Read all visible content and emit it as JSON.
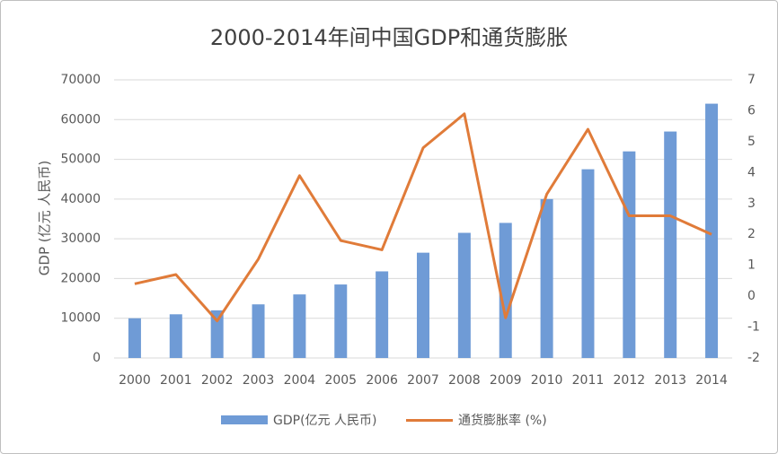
{
  "chart_data": {
    "type": "bar",
    "title": "2000-2014年间中国GDP和通货膨胀",
    "ylabel": "GDP (亿元 人民币)",
    "categories": [
      "2000",
      "2001",
      "2002",
      "2003",
      "2004",
      "2005",
      "2006",
      "2007",
      "2008",
      "2009",
      "2010",
      "2011",
      "2012",
      "2013",
      "2014"
    ],
    "ylim": [
      0,
      70000
    ],
    "y2lim": [
      -2,
      7
    ],
    "yticks": [
      "0",
      "10000",
      "20000",
      "30000",
      "40000",
      "50000",
      "60000",
      "70000"
    ],
    "y2ticks": [
      "-2",
      "-1",
      "0",
      "1",
      "2",
      "3",
      "4",
      "5",
      "6",
      "7"
    ],
    "grid": true,
    "legend_position": "bottom",
    "series": [
      {
        "name": "GDP(亿元 人民币)",
        "type": "bar",
        "axis": "left",
        "color": "#6f9bd6",
        "values": [
          10000,
          11000,
          12000,
          13500,
          16000,
          18500,
          21800,
          26500,
          31500,
          34000,
          40000,
          47500,
          52000,
          57000,
          64000
        ]
      },
      {
        "name": "通货膨胀率 (%)",
        "type": "line",
        "axis": "right",
        "color": "#e07b39",
        "values": [
          0.4,
          0.7,
          -0.8,
          1.2,
          3.9,
          1.8,
          1.5,
          4.8,
          5.9,
          -0.7,
          3.3,
          5.4,
          2.6,
          2.6,
          2.0
        ]
      }
    ]
  }
}
